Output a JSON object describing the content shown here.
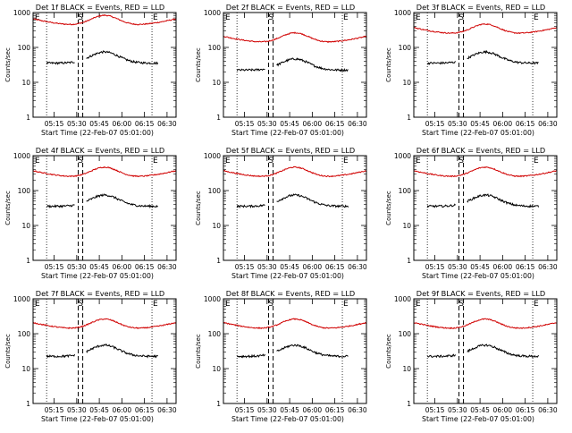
{
  "layout": {
    "rows": 3,
    "cols": 3
  },
  "shared": {
    "ylabel": "Counts/sec",
    "xlabel": "Start Time (22-Feb-07 05:01:00)",
    "xticks": [
      "05:15",
      "05:30",
      "05:45",
      "06:00",
      "06:15",
      "06:30"
    ],
    "yticks": [
      "1",
      "10",
      "100",
      "1000"
    ],
    "marker_left": "E",
    "marker_right": "E",
    "colors": {
      "events": "#000000",
      "lld": "#d00000",
      "frame": "#000000"
    }
  },
  "chart_data": [
    {
      "type": "line",
      "title": "Det 1f BLACK = Events, RED = LLD",
      "center_label": "S",
      "xlim": [
        5.0167,
        6.6
      ],
      "ylim": [
        1,
        1000
      ],
      "yscale": "log",
      "series": [
        {
          "name": "LLD",
          "color": "#d00000",
          "level": "high"
        },
        {
          "name": "Events",
          "color": "#000000",
          "level": "mid"
        }
      ]
    },
    {
      "type": "line",
      "title": "Det 2f BLACK = Events, RED = LLD",
      "center_label": "S",
      "xlim": [
        5.0167,
        6.6
      ],
      "ylim": [
        1,
        1000
      ],
      "yscale": "log",
      "series": [
        {
          "name": "LLD",
          "color": "#d00000",
          "level": "low"
        },
        {
          "name": "Events",
          "color": "#000000",
          "level": "low"
        }
      ]
    },
    {
      "type": "line",
      "title": "Det 3f BLACK = Events, RED = LLD",
      "center_label": "S",
      "xlim": [
        5.0167,
        6.6
      ],
      "ylim": [
        1,
        1000
      ],
      "yscale": "log",
      "series": [
        {
          "name": "LLD",
          "color": "#d00000",
          "level": "mid"
        },
        {
          "name": "Events",
          "color": "#000000",
          "level": "mid"
        }
      ]
    },
    {
      "type": "line",
      "title": "Det 4f BLACK = Events, RED = LLD",
      "center_label": "S",
      "xlim": [
        5.0167,
        6.6
      ],
      "ylim": [
        1,
        1000
      ],
      "yscale": "log",
      "series": [
        {
          "name": "LLD",
          "color": "#d00000",
          "level": "mid"
        },
        {
          "name": "Events",
          "color": "#000000",
          "level": "mid"
        }
      ]
    },
    {
      "type": "line",
      "title": "Det 5f BLACK = Events, RED = LLD",
      "center_label": "S",
      "xlim": [
        5.0167,
        6.6
      ],
      "ylim": [
        1,
        1000
      ],
      "yscale": "log",
      "series": [
        {
          "name": "LLD",
          "color": "#d00000",
          "level": "mid"
        },
        {
          "name": "Events",
          "color": "#000000",
          "level": "mid"
        }
      ]
    },
    {
      "type": "line",
      "title": "Det 6f BLACK = Events, RED = LLD",
      "center_label": "S",
      "xlim": [
        5.0167,
        6.6
      ],
      "ylim": [
        1,
        1000
      ],
      "yscale": "log",
      "series": [
        {
          "name": "LLD",
          "color": "#d00000",
          "level": "mid"
        },
        {
          "name": "Events",
          "color": "#000000",
          "level": "mid"
        }
      ]
    },
    {
      "type": "line",
      "title": "Det 7f BLACK = Events, RED = LLD",
      "center_label": "S",
      "xlim": [
        5.0167,
        6.6
      ],
      "ylim": [
        1,
        1000
      ],
      "yscale": "log",
      "series": [
        {
          "name": "LLD",
          "color": "#d00000",
          "level": "low"
        },
        {
          "name": "Events",
          "color": "#000000",
          "level": "low"
        }
      ]
    },
    {
      "type": "line",
      "title": "Det 8f BLACK = Events, RED = LLD",
      "center_label": "S",
      "xlim": [
        5.0167,
        6.6
      ],
      "ylim": [
        1,
        1000
      ],
      "yscale": "log",
      "series": [
        {
          "name": "LLD",
          "color": "#d00000",
          "level": "low"
        },
        {
          "name": "Events",
          "color": "#000000",
          "level": "low"
        }
      ]
    },
    {
      "type": "line",
      "title": "Det 9f BLACK = Events, RED = LLD",
      "center_label": "S",
      "xlim": [
        5.0167,
        6.6
      ],
      "ylim": [
        1,
        1000
      ],
      "yscale": "log",
      "series": [
        {
          "name": "LLD",
          "color": "#d00000",
          "level": "low"
        },
        {
          "name": "Events",
          "color": "#000000",
          "level": "low"
        }
      ]
    }
  ]
}
